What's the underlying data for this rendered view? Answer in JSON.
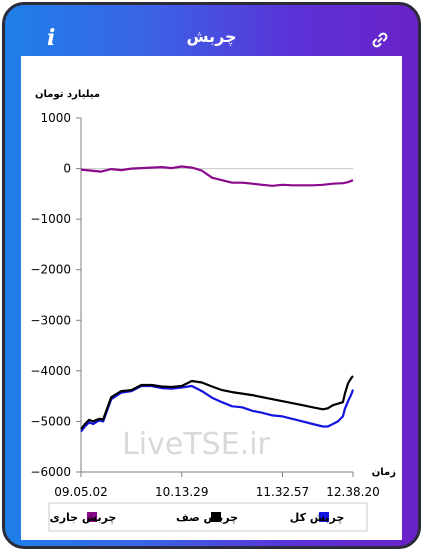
{
  "header": {
    "title": "چربش",
    "info_icon": "i",
    "link_icon": "link-icon",
    "gradient_colors": [
      "#1f7fe8",
      "#6a22c8"
    ]
  },
  "chart_data": {
    "type": "line",
    "ylabel": "میلیارد تومان",
    "xlabel": "زمان",
    "ylim": [
      -6000,
      1000
    ],
    "yticks": [
      "1000",
      "0",
      "−1000",
      "−2000",
      "−3000",
      "−4000",
      "−5000",
      "−6000"
    ],
    "yticks_values": [
      1000,
      0,
      -1000,
      -2000,
      -3000,
      -4000,
      -5000,
      -6000
    ],
    "xticks": [
      "09.05.02",
      "10.13.29",
      "11.32.57",
      "12.38.20"
    ],
    "xticks_positions": [
      0,
      1,
      2,
      2.7
    ],
    "watermark": "LiveTSE.ir",
    "legend": [
      {
        "label": "چربش کل",
        "color": "#1515e0"
      },
      {
        "label": "چربش صف",
        "color": "#000000"
      },
      {
        "label": "چربش جاری",
        "color": "#8b0a8b"
      }
    ],
    "series": [
      {
        "name": "چربش کل",
        "color": "#1515e0",
        "x": [
          0,
          0.04,
          0.08,
          0.12,
          0.18,
          0.22,
          0.3,
          0.4,
          0.5,
          0.6,
          0.7,
          0.8,
          0.9,
          1.0,
          1.1,
          1.2,
          1.3,
          1.4,
          1.5,
          1.6,
          1.7,
          1.8,
          1.9,
          2.0,
          2.1,
          2.2,
          2.3,
          2.4,
          2.45,
          2.5,
          2.55,
          2.6,
          2.62,
          2.65,
          2.68,
          2.7
        ],
        "y": [
          -5200,
          -5100,
          -5020,
          -5050,
          -4980,
          -5000,
          -4560,
          -4430,
          -4400,
          -4300,
          -4300,
          -4340,
          -4350,
          -4330,
          -4300,
          -4400,
          -4530,
          -4620,
          -4700,
          -4720,
          -4790,
          -4830,
          -4880,
          -4900,
          -4950,
          -5000,
          -5050,
          -5100,
          -5100,
          -5050,
          -5000,
          -4900,
          -4750,
          -4600,
          -4480,
          -4370
        ]
      },
      {
        "name": "چربش صف",
        "color": "#000000",
        "x": [
          0,
          0.04,
          0.08,
          0.12,
          0.18,
          0.22,
          0.3,
          0.4,
          0.5,
          0.6,
          0.7,
          0.8,
          0.9,
          1.0,
          1.1,
          1.2,
          1.3,
          1.4,
          1.5,
          1.6,
          1.7,
          1.8,
          1.9,
          2.0,
          2.1,
          2.2,
          2.3,
          2.4,
          2.45,
          2.5,
          2.55,
          2.6,
          2.62,
          2.65,
          2.68,
          2.7
        ],
        "y": [
          -5150,
          -5050,
          -4970,
          -5000,
          -4950,
          -4960,
          -4520,
          -4400,
          -4380,
          -4280,
          -4280,
          -4310,
          -4320,
          -4300,
          -4200,
          -4230,
          -4310,
          -4380,
          -4420,
          -4450,
          -4480,
          -4520,
          -4560,
          -4600,
          -4640,
          -4680,
          -4720,
          -4760,
          -4740,
          -4680,
          -4650,
          -4620,
          -4450,
          -4250,
          -4150,
          -4100
        ]
      },
      {
        "name": "چربش جاری",
        "color": "#8b0a8b",
        "x": [
          0,
          0.1,
          0.2,
          0.3,
          0.4,
          0.5,
          0.6,
          0.7,
          0.8,
          0.9,
          1.0,
          1.1,
          1.2,
          1.3,
          1.4,
          1.5,
          1.6,
          1.7,
          1.8,
          1.9,
          2.0,
          2.1,
          2.2,
          2.3,
          2.4,
          2.5,
          2.6,
          2.65,
          2.7
        ],
        "y": [
          -20,
          -40,
          -60,
          -10,
          -30,
          0,
          10,
          20,
          30,
          10,
          40,
          20,
          -40,
          -180,
          -230,
          -280,
          -280,
          -300,
          -320,
          -340,
          -320,
          -330,
          -330,
          -330,
          -320,
          -300,
          -290,
          -270,
          -230
        ]
      }
    ]
  }
}
